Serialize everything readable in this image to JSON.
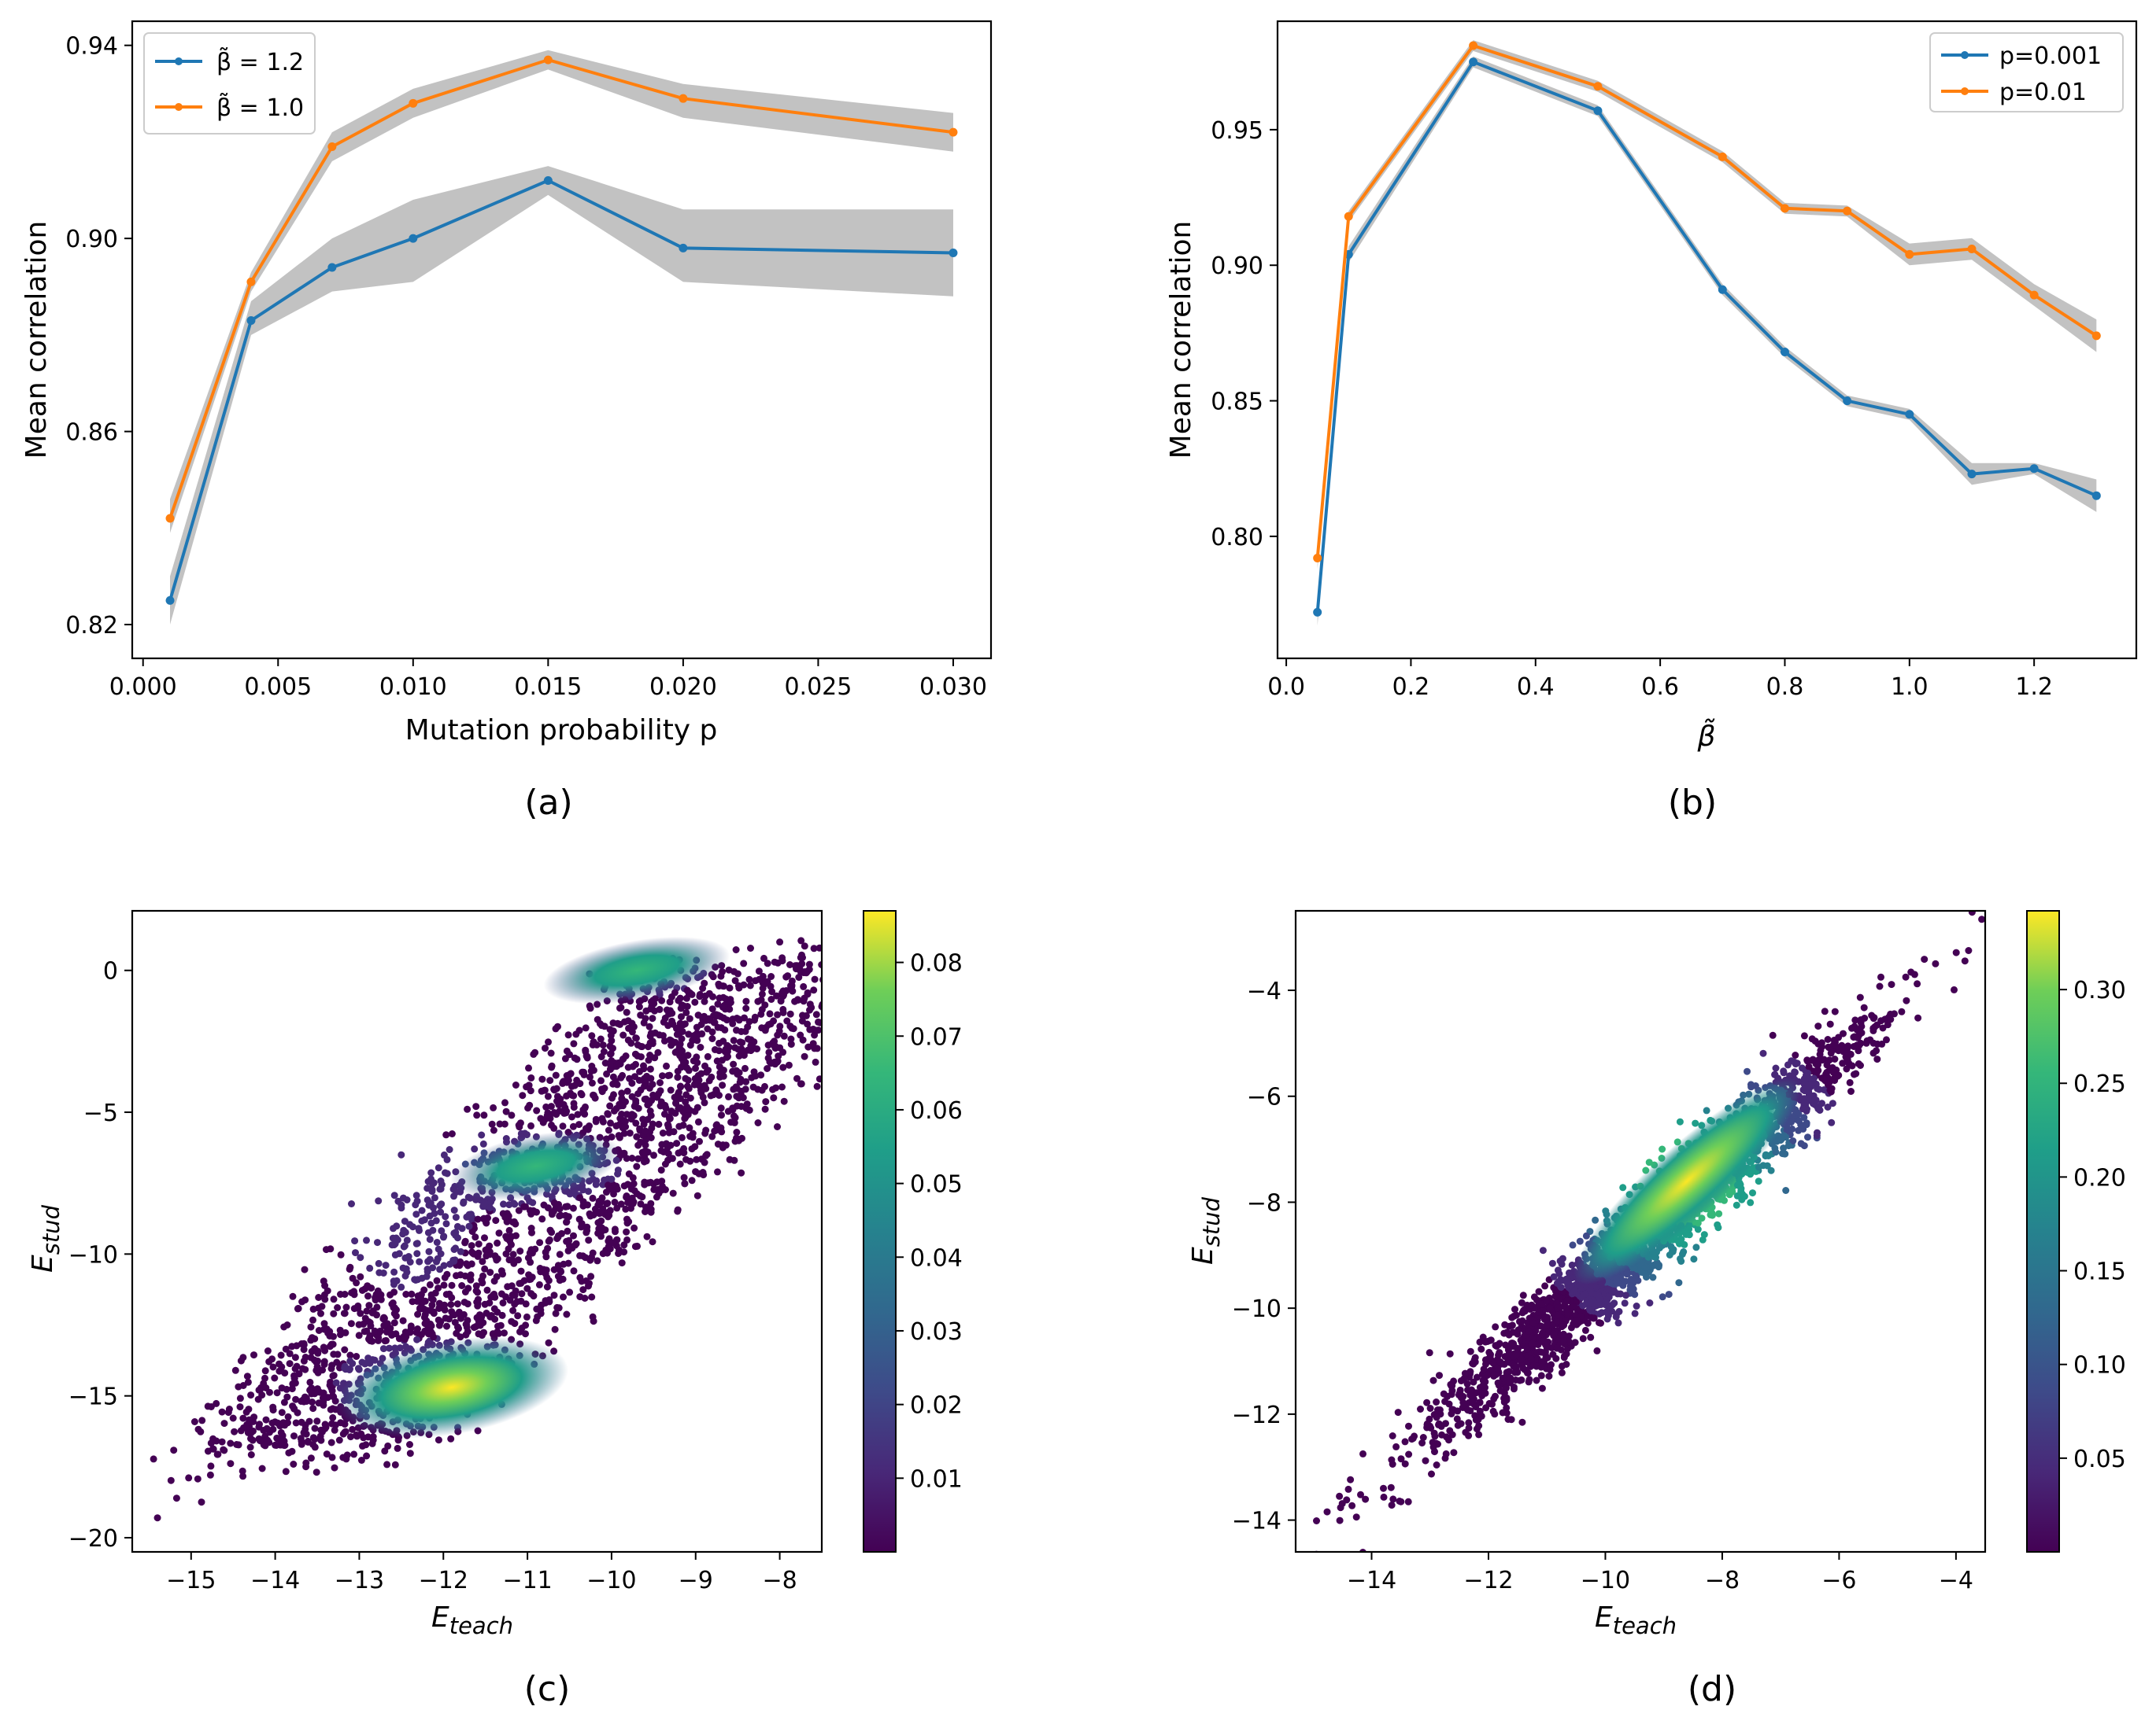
{
  "panels": {
    "a": {
      "caption": "(a)"
    },
    "b": {
      "caption": "(b)"
    },
    "c": {
      "caption": "(c)"
    },
    "d": {
      "caption": "(d)"
    }
  },
  "chart_data": [
    {
      "panel": "a",
      "type": "line",
      "xlabel": "Mutation probability p",
      "ylabel": "Mean correlation",
      "xlim": [
        -0.0004,
        0.0314
      ],
      "ylim": [
        0.813,
        0.945
      ],
      "xticks": [
        "0.000",
        "0.005",
        "0.010",
        "0.015",
        "0.020",
        "0.025",
        "0.030"
      ],
      "xtick_values": [
        0,
        0.005,
        0.01,
        0.015,
        0.02,
        0.025,
        0.03
      ],
      "yticks": [
        "0.82",
        "0.86",
        "0.90",
        "0.94"
      ],
      "ytick_values": [
        0.82,
        0.86,
        0.9,
        0.94
      ],
      "legend_placement": "upper left",
      "grid": false,
      "x": [
        0.001,
        0.004,
        0.007,
        0.01,
        0.015,
        0.02,
        0.03
      ],
      "series": [
        {
          "name": "β̃ = 1.2",
          "color": "#1f77b4",
          "values": [
            0.825,
            0.883,
            0.894,
            0.9,
            0.912,
            0.898,
            0.897
          ],
          "lower": [
            0.82,
            0.88,
            0.889,
            0.891,
            0.909,
            0.891,
            0.888
          ],
          "upper": [
            0.83,
            0.887,
            0.9,
            0.908,
            0.915,
            0.906,
            0.906
          ]
        },
        {
          "name": "β̃ = 1.0",
          "color": "#ff7f0e",
          "values": [
            0.842,
            0.891,
            0.919,
            0.928,
            0.937,
            0.929,
            0.922
          ],
          "lower": [
            0.839,
            0.889,
            0.916,
            0.925,
            0.935,
            0.925,
            0.918
          ],
          "upper": [
            0.846,
            0.893,
            0.922,
            0.931,
            0.939,
            0.932,
            0.926
          ]
        }
      ]
    },
    {
      "panel": "b",
      "type": "line",
      "xlabel": "β̃",
      "ylabel": "Mean correlation",
      "xlim": [
        -0.014,
        1.364
      ],
      "ylim": [
        0.755,
        0.99
      ],
      "xticks": [
        "0.0",
        "0.2",
        "0.4",
        "0.6",
        "0.8",
        "1.0",
        "1.2"
      ],
      "xtick_values": [
        0,
        0.2,
        0.4,
        0.6,
        0.8,
        1.0,
        1.2
      ],
      "yticks": [
        "0.80",
        "0.85",
        "0.90",
        "0.95"
      ],
      "ytick_values": [
        0.8,
        0.85,
        0.9,
        0.95
      ],
      "legend_placement": "upper right",
      "grid": false,
      "x": [
        0.05,
        0.1,
        0.3,
        0.5,
        0.7,
        0.8,
        0.9,
        1.0,
        1.1,
        1.2,
        1.3
      ],
      "series": [
        {
          "name": "p=0.001",
          "color": "#1f77b4",
          "values": [
            0.772,
            0.904,
            0.975,
            0.957,
            0.891,
            0.868,
            0.85,
            0.845,
            0.823,
            0.825,
            0.815
          ],
          "lower": [
            0.767,
            0.901,
            0.973,
            0.955,
            0.889,
            0.866,
            0.848,
            0.843,
            0.819,
            0.823,
            0.809
          ],
          "upper": [
            0.777,
            0.907,
            0.977,
            0.959,
            0.893,
            0.87,
            0.852,
            0.847,
            0.827,
            0.827,
            0.821
          ]
        },
        {
          "name": "p=0.01",
          "color": "#ff7f0e",
          "values": [
            0.792,
            0.918,
            0.981,
            0.966,
            0.94,
            0.921,
            0.92,
            0.904,
            0.906,
            0.889,
            0.874
          ],
          "lower": [
            0.788,
            0.916,
            0.979,
            0.964,
            0.938,
            0.919,
            0.918,
            0.9,
            0.902,
            0.885,
            0.868
          ],
          "upper": [
            0.796,
            0.92,
            0.983,
            0.968,
            0.942,
            0.923,
            0.922,
            0.908,
            0.91,
            0.893,
            0.88
          ]
        }
      ]
    },
    {
      "panel": "c",
      "type": "scatter",
      "xlabel_main": "E",
      "xlabel_sub": "teach",
      "ylabel_main": "E",
      "ylabel_sub": "stud",
      "xlim": [
        -15.7,
        -7.5
      ],
      "ylim": [
        -20.5,
        2.1
      ],
      "xticks": [
        "−15",
        "−14",
        "−13",
        "−12",
        "−11",
        "−10",
        "−9",
        "−8"
      ],
      "xtick_values": [
        -15,
        -14,
        -13,
        -12,
        -11,
        -10,
        -9,
        -8
      ],
      "yticks": [
        "−20",
        "−15",
        "−10",
        "−5",
        "0"
      ],
      "ytick_values": [
        -20,
        -15,
        -10,
        -5,
        0
      ],
      "colorbar": {
        "min": 0.0,
        "max": 0.087,
        "ticks": [
          "0.01",
          "0.02",
          "0.03",
          "0.04",
          "0.05",
          "0.06",
          "0.07",
          "0.08"
        ],
        "tick_values": [
          0.01,
          0.02,
          0.03,
          0.04,
          0.05,
          0.06,
          0.07,
          0.08
        ],
        "colormap": "viridis"
      },
      "density_clusters": [
        {
          "x": -11.9,
          "y": -14.7,
          "density": 0.087
        },
        {
          "x": -10.9,
          "y": -6.9,
          "density": 0.06
        },
        {
          "x": -9.7,
          "y": 0.0,
          "density": 0.055
        }
      ],
      "extent_points": [
        {
          "x": -15.4,
          "y": -19.3
        },
        {
          "x": -8.0,
          "y": 1.0
        }
      ]
    },
    {
      "panel": "d",
      "type": "scatter",
      "xlabel_main": "E",
      "xlabel_sub": "teach",
      "ylabel_main": "E",
      "ylabel_sub": "stud",
      "xlim": [
        -15.3,
        -3.5
      ],
      "ylim": [
        -14.6,
        -2.5
      ],
      "xticks": [
        "−14",
        "−12",
        "−10",
        "−8",
        "−6",
        "−4"
      ],
      "xtick_values": [
        -14,
        -12,
        -10,
        -8,
        -6,
        -4
      ],
      "yticks": [
        "−14",
        "−12",
        "−10",
        "−8",
        "−6",
        "−4"
      ],
      "ytick_values": [
        -14,
        -12,
        -10,
        -8,
        -6,
        -4
      ],
      "colorbar": {
        "min": 0.0,
        "max": 0.342,
        "ticks": [
          "0.05",
          "0.10",
          "0.15",
          "0.20",
          "0.25",
          "0.30"
        ],
        "tick_values": [
          0.05,
          0.1,
          0.15,
          0.2,
          0.25,
          0.3
        ],
        "colormap": "viridis"
      },
      "density_clusters": [
        {
          "x": -8.6,
          "y": -7.6,
          "density": 0.34
        }
      ],
      "trend": {
        "x0": -14.6,
        "y0": -14.0,
        "x1": -3.8,
        "y1": -3.0
      }
    }
  ],
  "colors": {
    "band": "#bfbfbf",
    "blue": "#1f77b4",
    "orange": "#ff7f0e"
  }
}
